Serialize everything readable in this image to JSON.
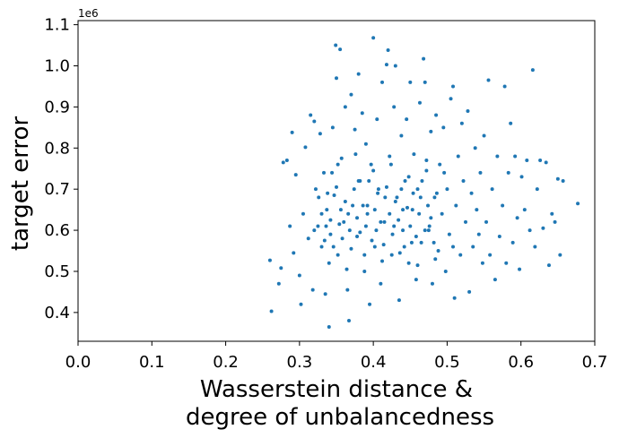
{
  "chart_data": {
    "type": "scatter",
    "title": "",
    "xlabel_lines": [
      "Wasserstein distance &",
      "degree of unbalancedness"
    ],
    "ylabel": "target error",
    "y_offset_label": "1e6",
    "xlim": [
      0.0,
      0.7
    ],
    "ylim": [
      0.33,
      1.11
    ],
    "x_ticks": [
      0.0,
      0.1,
      0.2,
      0.3,
      0.4,
      0.5,
      0.6,
      0.7
    ],
    "x_tick_labels": [
      "0.0",
      "0.1",
      "0.2",
      "0.3",
      "0.4",
      "0.5",
      "0.6",
      "0.7"
    ],
    "y_ticks": [
      0.4,
      0.5,
      0.6,
      0.7,
      0.8,
      0.9,
      1.0,
      1.1
    ],
    "y_tick_labels": [
      "0.4",
      "0.5",
      "0.6",
      "0.7",
      "0.8",
      "0.9",
      "1.0",
      "1.1"
    ],
    "y_scale_factor": 1000000,
    "grid": false,
    "marker_color": "#1f77b4",
    "points": [
      [
        0.262,
        0.403
      ],
      [
        0.26,
        0.527
      ],
      [
        0.272,
        0.47
      ],
      [
        0.275,
        0.508
      ],
      [
        0.278,
        0.765
      ],
      [
        0.283,
        0.77
      ],
      [
        0.287,
        0.61
      ],
      [
        0.29,
        0.838
      ],
      [
        0.292,
        0.545
      ],
      [
        0.295,
        0.735
      ],
      [
        0.3,
        0.49
      ],
      [
        0.302,
        0.42
      ],
      [
        0.305,
        0.64
      ],
      [
        0.308,
        0.802
      ],
      [
        0.312,
        0.58
      ],
      [
        0.315,
        0.88
      ],
      [
        0.318,
        0.455
      ],
      [
        0.32,
        0.865
      ],
      [
        0.322,
        0.7
      ],
      [
        0.325,
        0.61
      ],
      [
        0.328,
        0.835
      ],
      [
        0.33,
        0.56
      ],
      [
        0.333,
        0.74
      ],
      [
        0.335,
        0.445
      ],
      [
        0.337,
        0.65
      ],
      [
        0.34,
        0.365
      ],
      [
        0.342,
        0.59
      ],
      [
        0.345,
        0.85
      ],
      [
        0.347,
        0.685
      ],
      [
        0.349,
        1.05
      ],
      [
        0.35,
        0.97
      ],
      [
        0.352,
        0.54
      ],
      [
        0.355,
        1.04
      ],
      [
        0.357,
        0.775
      ],
      [
        0.36,
        0.62
      ],
      [
        0.362,
        0.9
      ],
      [
        0.365,
        0.455
      ],
      [
        0.367,
        0.38
      ],
      [
        0.37,
        0.93
      ],
      [
        0.372,
        0.66
      ],
      [
        0.375,
        0.845
      ],
      [
        0.378,
        0.585
      ],
      [
        0.38,
        0.98
      ],
      [
        0.382,
        0.72
      ],
      [
        0.385,
        0.885
      ],
      [
        0.388,
        0.5
      ],
      [
        0.39,
        0.81
      ],
      [
        0.392,
        0.64
      ],
      [
        0.395,
        0.42
      ],
      [
        0.397,
        0.76
      ],
      [
        0.4,
        1.068
      ],
      [
        0.402,
        0.56
      ],
      [
        0.405,
        0.87
      ],
      [
        0.407,
        0.7
      ],
      [
        0.41,
        0.47
      ],
      [
        0.412,
        0.96
      ],
      [
        0.415,
        0.62
      ],
      [
        0.418,
        1.003
      ],
      [
        0.42,
        1.038
      ],
      [
        0.422,
        0.78
      ],
      [
        0.425,
        0.54
      ],
      [
        0.428,
        0.9
      ],
      [
        0.43,
        1.0
      ],
      [
        0.432,
        0.68
      ],
      [
        0.435,
        0.43
      ],
      [
        0.438,
        0.83
      ],
      [
        0.44,
        0.6
      ],
      [
        0.443,
        0.72
      ],
      [
        0.445,
        0.87
      ],
      [
        0.448,
        0.52
      ],
      [
        0.45,
        0.96
      ],
      [
        0.453,
        0.65
      ],
      [
        0.455,
        0.785
      ],
      [
        0.458,
        0.48
      ],
      [
        0.46,
        0.7
      ],
      [
        0.463,
        0.91
      ],
      [
        0.465,
        0.57
      ],
      [
        0.468,
        1.017
      ],
      [
        0.47,
        0.96
      ],
      [
        0.472,
        0.745
      ],
      [
        0.475,
        0.6
      ],
      [
        0.478,
        0.84
      ],
      [
        0.48,
        0.47
      ],
      [
        0.483,
        0.68
      ],
      [
        0.485,
        0.88
      ],
      [
        0.488,
        0.55
      ],
      [
        0.49,
        0.76
      ],
      [
        0.493,
        0.64
      ],
      [
        0.495,
        0.85
      ],
      [
        0.498,
        0.5
      ],
      [
        0.5,
        0.7
      ],
      [
        0.503,
        0.59
      ],
      [
        0.505,
        0.92
      ],
      [
        0.508,
        0.95
      ],
      [
        0.51,
        0.435
      ],
      [
        0.512,
        0.66
      ],
      [
        0.515,
        0.78
      ],
      [
        0.518,
        0.54
      ],
      [
        0.52,
        0.86
      ],
      [
        0.522,
        0.72
      ],
      [
        0.525,
        0.62
      ],
      [
        0.528,
        0.89
      ],
      [
        0.53,
        0.45
      ],
      [
        0.533,
        0.69
      ],
      [
        0.535,
        0.56
      ],
      [
        0.538,
        0.8
      ],
      [
        0.54,
        0.65
      ],
      [
        0.543,
        0.59
      ],
      [
        0.545,
        0.74
      ],
      [
        0.548,
        0.52
      ],
      [
        0.55,
        0.83
      ],
      [
        0.553,
        0.62
      ],
      [
        0.556,
        0.965
      ],
      [
        0.558,
        0.54
      ],
      [
        0.561,
        0.7
      ],
      [
        0.565,
        0.48
      ],
      [
        0.568,
        0.78
      ],
      [
        0.571,
        0.585
      ],
      [
        0.575,
        0.66
      ],
      [
        0.578,
        0.95
      ],
      [
        0.58,
        0.52
      ],
      [
        0.583,
        0.74
      ],
      [
        0.586,
        0.86
      ],
      [
        0.589,
        0.57
      ],
      [
        0.592,
        0.78
      ],
      [
        0.595,
        0.63
      ],
      [
        0.598,
        0.505
      ],
      [
        0.601,
        0.73
      ],
      [
        0.605,
        0.65
      ],
      [
        0.608,
        0.77
      ],
      [
        0.612,
        0.6
      ],
      [
        0.616,
        0.99
      ],
      [
        0.619,
        0.56
      ],
      [
        0.622,
        0.7
      ],
      [
        0.626,
        0.77
      ],
      [
        0.63,
        0.605
      ],
      [
        0.634,
        0.765
      ],
      [
        0.638,
        0.515
      ],
      [
        0.642,
        0.64
      ],
      [
        0.646,
        0.62
      ],
      [
        0.65,
        0.725
      ],
      [
        0.653,
        0.54
      ],
      [
        0.657,
        0.72
      ],
      [
        0.677,
        0.665
      ],
      [
        0.33,
        0.64
      ],
      [
        0.334,
        0.575
      ],
      [
        0.338,
        0.69
      ],
      [
        0.342,
        0.625
      ],
      [
        0.346,
        0.56
      ],
      [
        0.35,
        0.705
      ],
      [
        0.354,
        0.615
      ],
      [
        0.358,
        0.58
      ],
      [
        0.362,
        0.67
      ],
      [
        0.366,
        0.64
      ],
      [
        0.37,
        0.555
      ],
      [
        0.374,
        0.7
      ],
      [
        0.378,
        0.63
      ],
      [
        0.382,
        0.595
      ],
      [
        0.386,
        0.66
      ],
      [
        0.39,
        0.61
      ],
      [
        0.394,
        0.72
      ],
      [
        0.398,
        0.575
      ],
      [
        0.402,
        0.65
      ],
      [
        0.406,
        0.69
      ],
      [
        0.41,
        0.62
      ],
      [
        0.414,
        0.565
      ],
      [
        0.418,
        0.705
      ],
      [
        0.422,
        0.64
      ],
      [
        0.426,
        0.59
      ],
      [
        0.43,
        0.67
      ],
      [
        0.434,
        0.625
      ],
      [
        0.438,
        0.7
      ],
      [
        0.442,
        0.56
      ],
      [
        0.446,
        0.655
      ],
      [
        0.45,
        0.61
      ],
      [
        0.454,
        0.69
      ],
      [
        0.458,
        0.585
      ],
      [
        0.462,
        0.64
      ],
      [
        0.466,
        0.72
      ],
      [
        0.47,
        0.6
      ],
      [
        0.474,
        0.66
      ],
      [
        0.478,
        0.63
      ],
      [
        0.482,
        0.57
      ],
      [
        0.486,
        0.69
      ],
      [
        0.34,
        0.52
      ],
      [
        0.352,
        0.76
      ],
      [
        0.364,
        0.505
      ],
      [
        0.376,
        0.785
      ],
      [
        0.388,
        0.54
      ],
      [
        0.4,
        0.745
      ],
      [
        0.412,
        0.525
      ],
      [
        0.424,
        0.76
      ],
      [
        0.436,
        0.545
      ],
      [
        0.448,
        0.73
      ],
      [
        0.46,
        0.515
      ],
      [
        0.472,
        0.77
      ],
      [
        0.484,
        0.53
      ],
      [
        0.496,
        0.74
      ],
      [
        0.508,
        0.56
      ],
      [
        0.32,
        0.6
      ],
      [
        0.326,
        0.68
      ],
      [
        0.336,
        0.61
      ],
      [
        0.344,
        0.74
      ],
      [
        0.356,
        0.65
      ],
      [
        0.368,
        0.6
      ],
      [
        0.38,
        0.72
      ],
      [
        0.392,
        0.66
      ],
      [
        0.404,
        0.6
      ],
      [
        0.416,
        0.68
      ],
      [
        0.428,
        0.61
      ],
      [
        0.44,
        0.65
      ],
      [
        0.452,
        0.57
      ],
      [
        0.464,
        0.68
      ],
      [
        0.476,
        0.61
      ]
    ]
  }
}
